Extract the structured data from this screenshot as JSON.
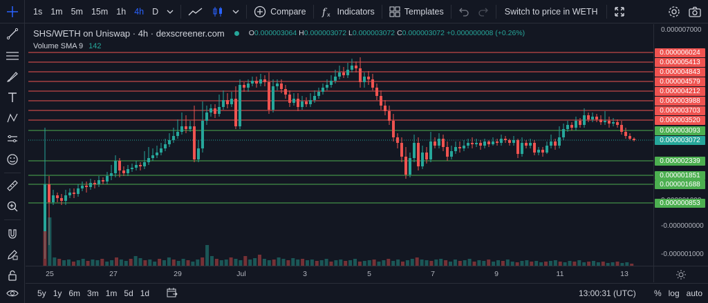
{
  "toolbar": {
    "intervals": [
      "1s",
      "1m",
      "5m",
      "15m",
      "1h",
      "4h",
      "D"
    ],
    "active_interval": "4h",
    "compare_label": "Compare",
    "indicators_label": "Indicators",
    "templates_label": "Templates",
    "switch_label": "Switch to price in WETH"
  },
  "legend": {
    "title": "SHS/WETH on Uniswap · 4h · dexscreener.com",
    "o_label": "O",
    "o_value": "0.000003064",
    "h_label": "H",
    "h_value": "0.000003072",
    "l_label": "L",
    "l_value": "0.000003072",
    "c_label": "C",
    "c_value": "0.000003072",
    "change": "+0.000000008 (+0.26%)",
    "volume_label": "Volume SMA 9",
    "volume_value": "142"
  },
  "price_scale": {
    "ticks": [
      "0.000007000",
      "0.000001000",
      "-0.000000000",
      "-0.000001000"
    ],
    "levels": [
      {
        "label": "0.000006024",
        "kind": "red"
      },
      {
        "label": "0.000005413",
        "kind": "red"
      },
      {
        "label": "0.000004843",
        "kind": "red"
      },
      {
        "label": "0.000004579",
        "kind": "red"
      },
      {
        "label": "0.000004212",
        "kind": "red"
      },
      {
        "label": "0.000003988",
        "kind": "red"
      },
      {
        "label": "0.000003703",
        "kind": "red"
      },
      {
        "label": "0.000003520",
        "kind": "red"
      },
      {
        "label": "0.000003093",
        "kind": "green"
      },
      {
        "label": "0.000003072",
        "kind": "cur"
      },
      {
        "label": "0.000002339",
        "kind": "green"
      },
      {
        "label": "0.000001851",
        "kind": "green"
      },
      {
        "label": "0.000001688",
        "kind": "green"
      },
      {
        "label": "0.000000853",
        "kind": "green"
      }
    ]
  },
  "time_scale": {
    "ticks": [
      "25",
      "27",
      "29",
      "Jul",
      "3",
      "5",
      "7",
      "9",
      "11",
      "13"
    ]
  },
  "bottom": {
    "ranges": [
      "5y",
      "1y",
      "6m",
      "3m",
      "1m",
      "5d",
      "1d"
    ],
    "clock": "13:00:31 (UTC)",
    "percent": "%",
    "log": "log",
    "auto": "auto"
  },
  "colors": {
    "up": "#26a69a",
    "down": "#ef5350",
    "level_red": "#ef5350",
    "level_green": "#4caf50"
  }
}
